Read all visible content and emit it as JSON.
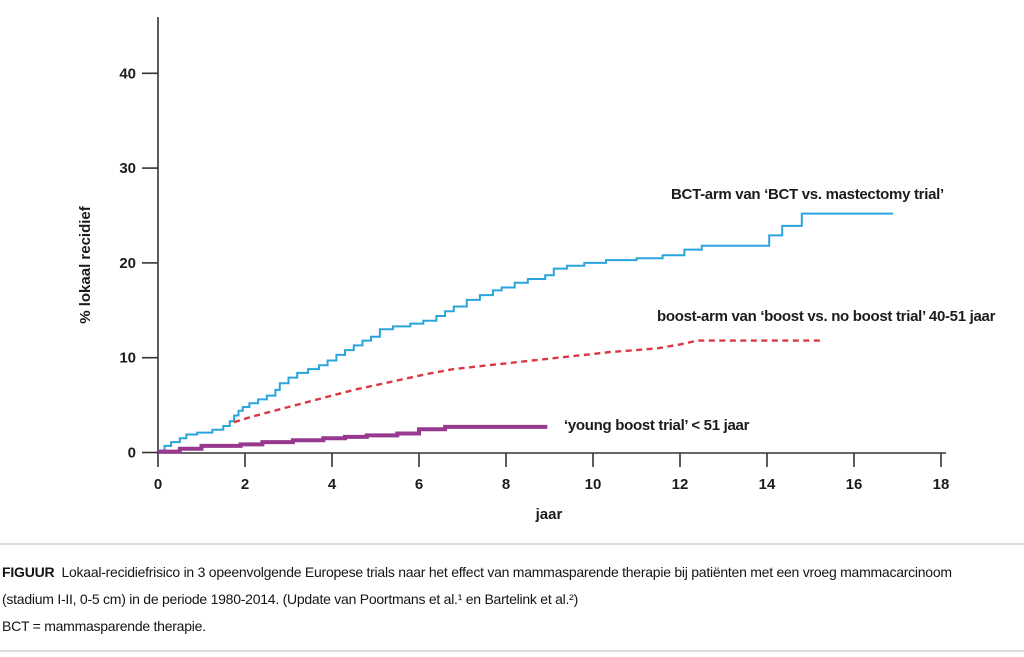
{
  "figure": {
    "y_axis_label": "% lokaal recidief",
    "x_axis_label": "jaar",
    "series_labels": {
      "bct": "BCT-arm van ‘BCT vs. mastectomy trial’",
      "boost": "boost-arm van ‘boost vs. no boost trial’ 40-51 jaar",
      "young": "‘young boost trial’ < 51 jaar"
    }
  },
  "caption": {
    "tag": "FIGUUR",
    "line1": "Lokaal-recidiefrisico in 3 opeenvolgende Europese trials naar het effect van mammasparende therapie bij patiënten met een vroeg mammacarcinoom",
    "line2": "(stadium I-II, 0-5 cm) in de periode 1980-2014. (Update van Poortmans et al.¹ en Bartelink et al.²)",
    "line3": "BCT = mammasparende therapie."
  },
  "colors": {
    "bct_blue": "#2AA5DC",
    "boost_red": "#D93943",
    "young_purple": "#96398F",
    "axis": "#333333",
    "divider": "#DCDCDC"
  },
  "chart_data": {
    "type": "line",
    "title": "",
    "xlabel": "jaar",
    "ylabel": "% lokaal recidief",
    "xlim": [
      0,
      18
    ],
    "ylim": [
      0,
      46
    ],
    "x_ticks": [
      0,
      2,
      4,
      6,
      8,
      10,
      12,
      14,
      16,
      18
    ],
    "y_ticks": [
      0,
      10,
      20,
      30,
      40
    ],
    "grid": false,
    "legend_position": "inline-annotations",
    "series": [
      {
        "name": "BCT-arm van ‘BCT vs. mastectomy trial’",
        "style": "step",
        "dash": "solid",
        "color": "#2AA5DC",
        "width": 2,
        "points": [
          [
            0,
            0.2
          ],
          [
            0.15,
            0.7
          ],
          [
            0.3,
            1.1
          ],
          [
            0.5,
            1.5
          ],
          [
            0.65,
            1.9
          ],
          [
            0.9,
            2.1
          ],
          [
            1.25,
            2.4
          ],
          [
            1.5,
            2.8
          ],
          [
            1.65,
            3.3
          ],
          [
            1.75,
            3.9
          ],
          [
            1.85,
            4.4
          ],
          [
            1.95,
            4.8
          ],
          [
            2.1,
            5.2
          ],
          [
            2.3,
            5.6
          ],
          [
            2.5,
            6.0
          ],
          [
            2.7,
            6.6
          ],
          [
            2.8,
            7.3
          ],
          [
            3.0,
            7.9
          ],
          [
            3.2,
            8.4
          ],
          [
            3.45,
            8.8
          ],
          [
            3.7,
            9.2
          ],
          [
            3.9,
            9.7
          ],
          [
            4.1,
            10.3
          ],
          [
            4.3,
            10.8
          ],
          [
            4.5,
            11.3
          ],
          [
            4.7,
            11.8
          ],
          [
            4.9,
            12.2
          ],
          [
            5.1,
            13.0
          ],
          [
            5.4,
            13.3
          ],
          [
            5.8,
            13.6
          ],
          [
            6.1,
            13.9
          ],
          [
            6.4,
            14.4
          ],
          [
            6.6,
            14.9
          ],
          [
            6.8,
            15.4
          ],
          [
            7.1,
            16.1
          ],
          [
            7.4,
            16.6
          ],
          [
            7.7,
            17.1
          ],
          [
            7.9,
            17.4
          ],
          [
            8.2,
            17.9
          ],
          [
            8.5,
            18.3
          ],
          [
            8.9,
            18.7
          ],
          [
            9.1,
            19.4
          ],
          [
            9.4,
            19.7
          ],
          [
            9.8,
            20.0
          ],
          [
            10.3,
            20.3
          ],
          [
            11.0,
            20.5
          ],
          [
            11.6,
            20.8
          ],
          [
            12.1,
            21.4
          ],
          [
            12.5,
            21.8
          ],
          [
            14.05,
            22.9
          ],
          [
            14.35,
            23.9
          ],
          [
            14.8,
            25.2
          ],
          [
            16.9,
            25.2
          ]
        ]
      },
      {
        "name": "boost-arm van ‘boost vs. no boost trial’ 40-51 jaar",
        "style": "line",
        "dash": "dashed",
        "color": "#D93943",
        "width": 2.4,
        "points": [
          [
            1.75,
            3.2
          ],
          [
            2.1,
            3.7
          ],
          [
            2.5,
            4.2
          ],
          [
            3.0,
            4.8
          ],
          [
            3.5,
            5.4
          ],
          [
            4.0,
            6.0
          ],
          [
            4.5,
            6.6
          ],
          [
            5.0,
            7.1
          ],
          [
            5.6,
            7.7
          ],
          [
            6.2,
            8.3
          ],
          [
            6.8,
            8.8
          ],
          [
            7.4,
            9.1
          ],
          [
            8.0,
            9.4
          ],
          [
            8.6,
            9.7
          ],
          [
            9.2,
            10.0
          ],
          [
            9.8,
            10.3
          ],
          [
            10.4,
            10.6
          ],
          [
            11.0,
            10.8
          ],
          [
            11.5,
            11.0
          ],
          [
            12.0,
            11.4
          ],
          [
            12.4,
            11.8
          ],
          [
            13.5,
            11.8
          ],
          [
            15.25,
            11.8
          ]
        ]
      },
      {
        "name": "‘young boost trial’ < 51 jaar",
        "style": "step",
        "dash": "solid",
        "color": "#96398F",
        "width": 4,
        "points": [
          [
            0,
            0.1
          ],
          [
            0.5,
            0.4
          ],
          [
            1.0,
            0.7
          ],
          [
            1.9,
            0.85
          ],
          [
            2.4,
            1.1
          ],
          [
            3.1,
            1.3
          ],
          [
            3.8,
            1.5
          ],
          [
            4.3,
            1.65
          ],
          [
            4.8,
            1.8
          ],
          [
            5.5,
            2.0
          ],
          [
            6.0,
            2.45
          ],
          [
            6.6,
            2.7
          ],
          [
            8.95,
            2.7
          ]
        ]
      }
    ]
  }
}
